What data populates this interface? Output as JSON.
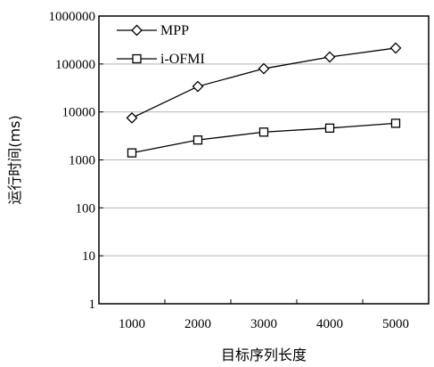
{
  "chart_data": {
    "type": "line",
    "title": "",
    "xlabel": "目标序列长度",
    "ylabel": "运行时间(ms)",
    "y_scale": "log",
    "ylim": [
      1,
      1000000
    ],
    "grid": true,
    "legend_position": "top-left",
    "x": [
      1000,
      2000,
      3000,
      4000,
      5000
    ],
    "x_tick_labels": [
      "1000",
      "2000",
      "3000",
      "4000",
      "5000"
    ],
    "y_ticks": [
      1,
      10,
      100,
      1000,
      10000,
      100000,
      1000000
    ],
    "y_tick_labels": [
      "1",
      "10",
      "100",
      "1000",
      "10000",
      "100000",
      "1000000"
    ],
    "series": [
      {
        "name": "MPP",
        "marker": "diamond",
        "values": [
          7500,
          34000,
          80000,
          140000,
          215000
        ]
      },
      {
        "name": "i-OFMI",
        "marker": "square",
        "values": [
          1400,
          2600,
          3800,
          4600,
          5800
        ]
      }
    ]
  }
}
